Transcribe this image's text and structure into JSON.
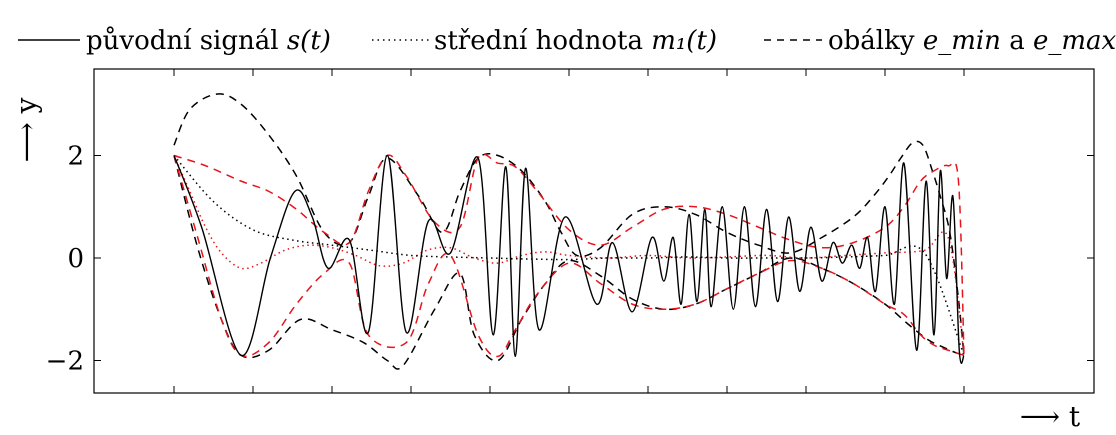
{
  "chart_data": {
    "type": "line",
    "title": "",
    "xlabel": "⟶ t",
    "ylabel": "⟶ y",
    "xlim": [
      0,
      1
    ],
    "ylim": [
      -2.6,
      3.6
    ],
    "yticks": [
      -2,
      0,
      2
    ],
    "ytick_labels": [
      "−2",
      "0",
      "2"
    ],
    "xticks": [
      0,
      0.1,
      0.2,
      0.3,
      0.4,
      0.5,
      0.6,
      0.7,
      0.8,
      0.9,
      1.0
    ],
    "grid": false,
    "legend_position": "top",
    "legend": [
      {
        "prefix": "původní signál ",
        "math": "s(t)",
        "style": "solid"
      },
      {
        "prefix": "střední hodnota ",
        "math": "m₁(t)",
        "style": "dotted"
      },
      {
        "prefix": "obálky ",
        "math": "e_min",
        "middle": " a ",
        "math2": "e_max",
        "style": "dashed"
      }
    ],
    "colors": {
      "black": "#000000",
      "red": "#e8141b"
    },
    "series": [
      {
        "name": "původní signál s(t)",
        "style": "solid",
        "color": "#000000",
        "x": [
          0.0,
          0.035,
          0.085,
          0.122,
          0.153,
          0.175,
          0.195,
          0.222,
          0.246,
          0.27,
          0.294,
          0.322,
          0.35,
          0.385,
          0.404,
          0.42,
          0.432,
          0.445,
          0.462,
          0.495,
          0.535,
          0.555,
          0.58,
          0.605,
          0.62,
          0.632,
          0.642,
          0.652,
          0.662,
          0.672,
          0.68,
          0.694,
          0.708,
          0.722,
          0.736,
          0.75,
          0.764,
          0.778,
          0.792,
          0.806,
          0.82,
          0.834,
          0.846,
          0.858,
          0.868,
          0.878,
          0.888,
          0.9,
          0.912,
          0.924,
          0.94,
          0.952,
          0.962,
          0.97,
          0.978,
          0.986,
          0.994,
          1.0
        ],
        "y": [
          2.0,
          0.6,
          -1.9,
          0.0,
          1.3,
          0.8,
          -0.2,
          0.35,
          -1.45,
          2.0,
          -1.45,
          0.72,
          0.1,
          1.95,
          -1.5,
          1.78,
          -1.92,
          1.75,
          -1.4,
          0.8,
          -0.9,
          0.3,
          -1.05,
          0.4,
          -0.45,
          0.4,
          -0.9,
          0.85,
          -0.85,
          0.95,
          -0.95,
          1.0,
          -1.0,
          1.0,
          -0.95,
          0.95,
          -0.85,
          0.8,
          -0.65,
          0.6,
          -0.45,
          0.3,
          -0.1,
          0.25,
          -0.2,
          0.4,
          -0.65,
          1.0,
          -0.9,
          1.85,
          -1.8,
          1.5,
          -1.5,
          1.7,
          -0.4,
          1.2,
          -1.8,
          -1.9
        ]
      },
      {
        "name": "střední hodnota m₁(t)",
        "style": "dotted",
        "color": "#000000",
        "x": [
          0.0,
          0.05,
          0.1,
          0.15,
          0.2,
          0.25,
          0.3,
          0.35,
          0.4,
          0.45,
          0.5,
          0.55,
          0.6,
          0.65,
          0.7,
          0.75,
          0.8,
          0.85,
          0.9,
          0.95,
          1.0
        ],
        "y": [
          2.0,
          1.1,
          0.55,
          0.35,
          0.25,
          0.15,
          0.05,
          0.02,
          0.0,
          -0.02,
          -0.03,
          0.0,
          0.0,
          0.02,
          0.0,
          0.0,
          0.0,
          0.02,
          0.05,
          0.1,
          -1.9
        ]
      },
      {
        "name": "",
        "style": "dashed",
        "color": "#000000",
        "x": [
          0.0,
          0.02,
          0.055,
          0.085,
          0.12,
          0.155,
          0.19,
          0.222,
          0.246,
          0.27,
          0.31,
          0.34,
          0.362,
          0.385,
          0.41,
          0.44,
          0.47,
          0.49,
          0.51,
          0.54,
          0.58,
          0.62,
          0.66,
          0.7,
          0.74,
          0.78,
          0.82,
          0.86,
          0.885,
          0.905,
          0.92,
          0.935,
          0.948,
          0.96,
          0.97,
          0.982,
          0.993,
          1.0
        ],
        "y": [
          2.2,
          2.9,
          3.2,
          3.0,
          2.4,
          1.6,
          0.5,
          0.3,
          1.2,
          1.95,
          1.2,
          0.5,
          1.3,
          1.95,
          2.0,
          1.7,
          1.1,
          0.5,
          0.05,
          0.2,
          0.85,
          1.0,
          0.85,
          0.5,
          0.25,
          0.1,
          0.4,
          0.8,
          1.2,
          1.6,
          1.95,
          2.25,
          2.2,
          1.7,
          1.2,
          0.5,
          -0.8,
          -1.9
        ]
      },
      {
        "name": "",
        "style": "dashed",
        "color": "#000000",
        "x": [
          0.0,
          0.03,
          0.06,
          0.085,
          0.12,
          0.16,
          0.2,
          0.24,
          0.27,
          0.29,
          0.33,
          0.362,
          0.38,
          0.41,
          0.44,
          0.47,
          0.5,
          0.54,
          0.58,
          0.62,
          0.66,
          0.7,
          0.74,
          0.78,
          0.82,
          0.86,
          0.9,
          0.93,
          0.955,
          0.975,
          0.99,
          1.0
        ],
        "y": [
          2.0,
          0.2,
          -1.2,
          -1.9,
          -1.8,
          -1.2,
          -1.4,
          -1.65,
          -2.0,
          -2.1,
          -1.0,
          -0.3,
          -1.5,
          -2.0,
          -1.2,
          -0.5,
          -0.05,
          -0.35,
          -0.8,
          -1.0,
          -0.9,
          -0.6,
          -0.3,
          0.0,
          -0.2,
          -0.5,
          -0.9,
          -1.3,
          -1.6,
          -1.75,
          -1.85,
          -1.9
        ]
      },
      {
        "name": "",
        "style": "dashed",
        "color": "#e8141b",
        "x": [
          0.0,
          0.04,
          0.085,
          0.12,
          0.155,
          0.19,
          0.222,
          0.246,
          0.27,
          0.294,
          0.33,
          0.362,
          0.385,
          0.41,
          0.432,
          0.46,
          0.5,
          0.54,
          0.58,
          0.62,
          0.66,
          0.7,
          0.74,
          0.78,
          0.82,
          0.86,
          0.9,
          0.924,
          0.945,
          0.962,
          0.98,
          0.993,
          1.0
        ],
        "y": [
          2.0,
          1.8,
          1.5,
          1.3,
          0.95,
          0.5,
          0.3,
          1.3,
          2.0,
          1.6,
          0.7,
          0.6,
          1.95,
          1.85,
          1.78,
          1.3,
          0.55,
          0.25,
          0.6,
          0.95,
          1.0,
          0.85,
          0.6,
          0.35,
          0.2,
          0.3,
          0.6,
          1.0,
          1.5,
          1.7,
          1.8,
          1.5,
          -1.9
        ]
      },
      {
        "name": "",
        "style": "dashed",
        "color": "#e8141b",
        "x": [
          0.0,
          0.03,
          0.06,
          0.085,
          0.12,
          0.155,
          0.19,
          0.222,
          0.246,
          0.294,
          0.322,
          0.35,
          0.385,
          0.41,
          0.432,
          0.46,
          0.5,
          0.54,
          0.58,
          0.62,
          0.66,
          0.7,
          0.74,
          0.78,
          0.82,
          0.86,
          0.9,
          0.924,
          0.945,
          0.962,
          0.98,
          1.0
        ],
        "y": [
          2.0,
          0.4,
          -1.2,
          -1.9,
          -1.65,
          -0.9,
          -0.3,
          -0.1,
          -1.5,
          -1.65,
          -0.5,
          0.05,
          -1.5,
          -1.92,
          -1.4,
          -0.7,
          -0.1,
          -0.5,
          -0.9,
          -1.0,
          -0.9,
          -0.6,
          -0.3,
          -0.05,
          -0.2,
          -0.5,
          -0.9,
          -1.1,
          -1.5,
          -1.7,
          -1.8,
          -1.9
        ]
      },
      {
        "name": "",
        "style": "dotted",
        "color": "#e8141b",
        "x": [
          0.0,
          0.02,
          0.04,
          0.06,
          0.085,
          0.11,
          0.14,
          0.17,
          0.2,
          0.23,
          0.26,
          0.29,
          0.32,
          0.35,
          0.38,
          0.41,
          0.44,
          0.47,
          0.5,
          0.55,
          0.6,
          0.65,
          0.7,
          0.75,
          0.8,
          0.85,
          0.9,
          0.95,
          0.98,
          1.0
        ],
        "y": [
          2.0,
          1.3,
          0.6,
          0.1,
          -0.2,
          -0.1,
          0.15,
          0.25,
          0.2,
          0.05,
          -0.15,
          -0.1,
          0.15,
          0.2,
          0.0,
          -0.1,
          0.05,
          0.12,
          0.05,
          0.0,
          0.05,
          0.0,
          0.02,
          0.05,
          0.0,
          0.05,
          0.1,
          0.15,
          0.4,
          -1.9
        ]
      }
    ]
  }
}
